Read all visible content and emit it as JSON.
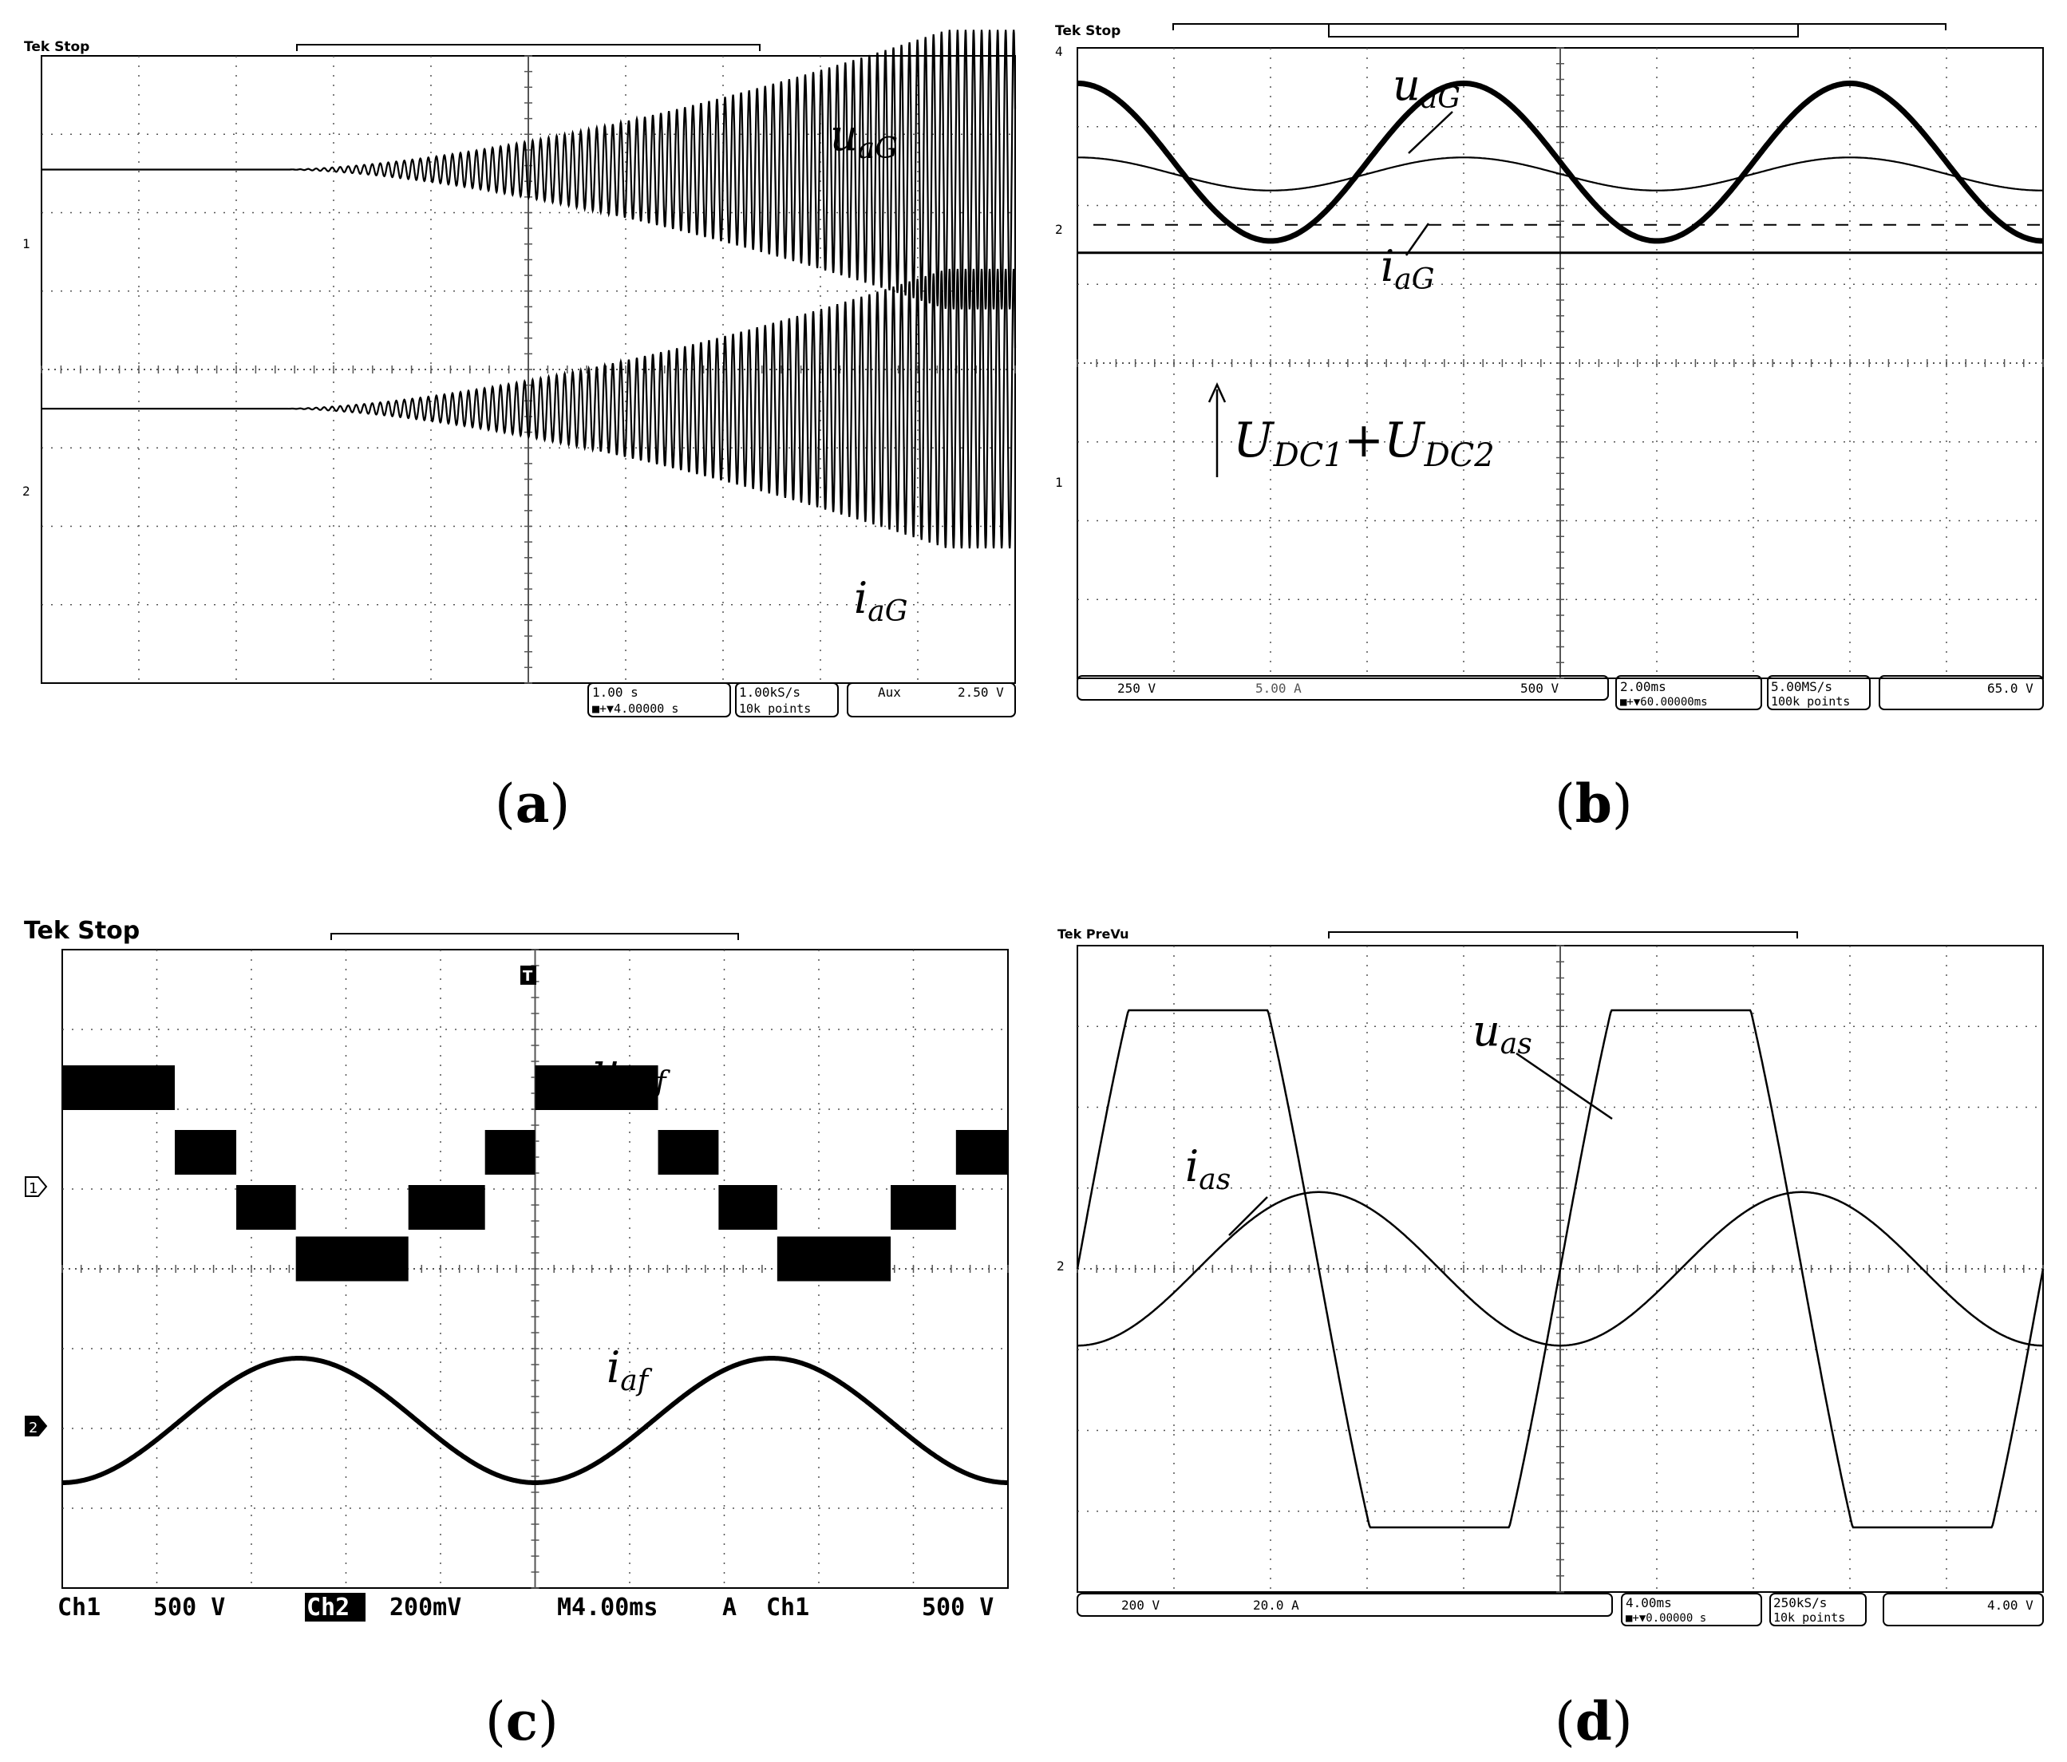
{
  "figure": {
    "panels": [
      {
        "id": "a",
        "caption": "a",
        "status": "Tek Stop",
        "waveforms": {
          "upper": "u",
          "upper_sub": "aG",
          "lower": "i",
          "lower_sub": "aG"
        },
        "readouts": [
          "1.00 s",
          "■+▼4.00000 s",
          "1.00kS/s",
          "10k points",
          "Aux",
          "2.50 V"
        ],
        "channel_markers": [
          "1",
          "2"
        ]
      },
      {
        "id": "b",
        "caption": "b",
        "status": "Tek Stop",
        "waveforms": {
          "upper": "u",
          "upper_sub": "aG",
          "lower": "i",
          "lower_sub": "aG",
          "dc": "U",
          "dc_sub1": "DC1",
          "dc_plus": "+",
          "dc2": "U",
          "dc_sub2": "DC2"
        },
        "readouts": [
          "250 V",
          "5.00 A",
          "500 V",
          "2.00ms",
          "■+▼60.00000ms",
          "5.00MS/s",
          "100k points",
          "65.0 V"
        ],
        "channel_markers": [
          "4",
          "2",
          "1"
        ]
      },
      {
        "id": "c",
        "caption": "c",
        "status": "Tek Stop",
        "waveforms": {
          "upper": "u",
          "upper_sub": "abf",
          "lower": "i",
          "lower_sub": "af"
        },
        "readouts": [
          "Ch1",
          "500 V",
          "Ch2",
          "200mV",
          "M4.00ms",
          "A",
          "Ch1",
          "500 V"
        ],
        "channel_markers": [
          "1",
          "2"
        ],
        "trigger_marker": "T"
      },
      {
        "id": "d",
        "caption": "d",
        "status": "Tek PreVu",
        "waveforms": {
          "upper": "u",
          "upper_sub": "as",
          "lower": "i",
          "lower_sub": "as"
        },
        "readouts": [
          "200 V",
          "20.0 A",
          "4.00ms",
          "■+▼0.00000 s",
          "250kS/s",
          "10k points",
          "4.00 V"
        ],
        "channel_markers": [
          "2"
        ]
      }
    ]
  },
  "chart_data": [
    {
      "panel": "a",
      "type": "line",
      "series": [
        {
          "name": "u_aG",
          "envelope": "amplitude grows from ~0 starting near t=4 s to a plateau of about 1.8 div",
          "start_div": 3.3,
          "plateau_div": 9.3,
          "amplitude_div": 1.8
        },
        {
          "name": "i_aG",
          "envelope": "amplitude grows from ~0 starting near t=4 s to a plateau of about 1.8 div",
          "start_div": 3.3,
          "plateau_div": 9.3,
          "amplitude_div": 1.8
        }
      ],
      "xlim_div": [
        0,
        10
      ],
      "time_per_div": "1.00 s"
    },
    {
      "panel": "b",
      "type": "line",
      "series": [
        {
          "name": "u_aG",
          "shape": "sine",
          "cycles_on_screen": 2.5,
          "amplitude_div": 1.0
        },
        {
          "name": "i_aG",
          "shape": "sine",
          "cycles_on_screen": 2.5,
          "amplitude_div": 0.21
        },
        {
          "name": "U_DC1+U_DC2",
          "shape": "dc",
          "level_div": 1.2
        }
      ],
      "xlim_div": [
        0,
        10
      ],
      "time_per_div": "2.00ms"
    },
    {
      "panel": "c",
      "type": "line",
      "series": [
        {
          "name": "u_abf",
          "shape": "multilevel staircase",
          "levels_div": [
            0.58,
            0.04,
            -0.42,
            -0.85,
            -0.42,
            0.04,
            0.58,
            0.04,
            -0.42,
            -0.85,
            -0.42,
            0.04
          ]
        },
        {
          "name": "i_af",
          "shape": "sine",
          "cycles_on_screen": 2.0,
          "amplitude_div": 0.78
        }
      ],
      "xlim_div": [
        0,
        10
      ],
      "time_per_div": "M4.00ms"
    },
    {
      "panel": "d",
      "type": "line",
      "series": [
        {
          "name": "u_as",
          "shape": "clipped sine",
          "cycles_on_screen": 2.0,
          "clip_div": 3.2
        },
        {
          "name": "i_as",
          "shape": "sine",
          "cycles_on_screen": 2.0,
          "amplitude_div": 0.95
        }
      ],
      "xlim_div": [
        0,
        10
      ],
      "time_per_div": "4.00ms"
    }
  ],
  "colors": {
    "trace": "#000000",
    "grid": "#555555",
    "background": "#ffffff"
  }
}
